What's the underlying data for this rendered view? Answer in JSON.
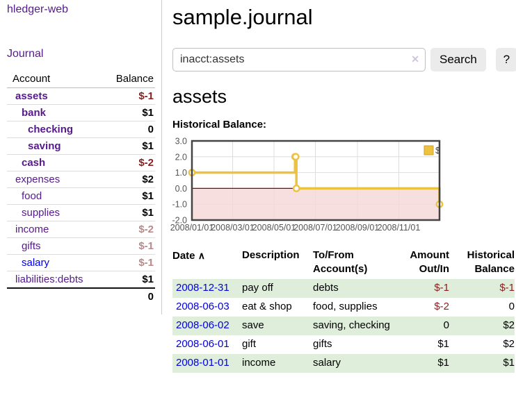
{
  "app": {
    "brand": "hledger-web",
    "nav_journal": "Journal"
  },
  "colors": {
    "link_purple": "#551a8b",
    "link_blue": "#0000e0",
    "negative_strong": "#8b1d1d",
    "negative_muted": "#b98989",
    "row_green": "#deeeda",
    "chart_line": "#edc240",
    "chart_negative_fill": "#f6d7d7",
    "chart_zero_line": "#8b0000",
    "button_gray": "#ebebeb"
  },
  "icons": {
    "search_clear": "✕",
    "sort_ascending": "∧"
  },
  "sidebar": {
    "headers": {
      "account": "Account",
      "balance": "Balance"
    },
    "rows": [
      {
        "account": "assets",
        "balance": "$-1",
        "indent": 0,
        "strong": true,
        "neg": "strong"
      },
      {
        "account": "bank",
        "balance": "$1",
        "indent": 1,
        "strong": true,
        "neg": ""
      },
      {
        "account": "checking",
        "balance": "0",
        "indent": 2,
        "strong": true,
        "neg": ""
      },
      {
        "account": "saving",
        "balance": "$1",
        "indent": 2,
        "strong": true,
        "neg": ""
      },
      {
        "account": "cash",
        "balance": "$-2",
        "indent": 1,
        "strong": true,
        "neg": "strong"
      },
      {
        "account": "expenses",
        "balance": "$2",
        "indent": 0,
        "strong": false,
        "neg": ""
      },
      {
        "account": "food",
        "balance": "$1",
        "indent": 1,
        "strong": false,
        "neg": ""
      },
      {
        "account": "supplies",
        "balance": "$1",
        "indent": 1,
        "strong": false,
        "neg": ""
      },
      {
        "account": "income",
        "balance": "$-2",
        "indent": 0,
        "strong": false,
        "neg": "muted"
      },
      {
        "account": "gifts",
        "balance": "$-1",
        "indent": 1,
        "strong": false,
        "neg": "muted"
      },
      {
        "account": "salary",
        "balance": "$-1",
        "indent": 1,
        "strong": false,
        "neg": "muted",
        "unvisited": true
      },
      {
        "account": "liabilities:debts",
        "balance": "$1",
        "indent": 0,
        "strong": false,
        "neg": ""
      }
    ],
    "total": "0"
  },
  "main": {
    "title": "sample.journal",
    "search": {
      "value": "inacct:assets",
      "clear_icon": "✕",
      "button_label": "Search",
      "help_label": "?"
    },
    "account_heading": "assets"
  },
  "chart_data": {
    "type": "line",
    "title": "Historical Balance:",
    "step": true,
    "series": [
      {
        "name": "$",
        "color": "#edc240",
        "points": [
          [
            "2008-01-01",
            1
          ],
          [
            "2008-06-01",
            2
          ],
          [
            "2008-06-02",
            2
          ],
          [
            "2008-06-03",
            0
          ],
          [
            "2008-12-31",
            -1
          ]
        ]
      }
    ],
    "x_range": [
      "2008-01-01",
      "2008-12-31"
    ],
    "x_ticks": [
      "2008/01/01",
      "2008/03/01",
      "2008/05/01",
      "2008/07/01",
      "2008/09/01",
      "2008/11/01"
    ],
    "x_tick_dates": [
      "2008-01-01",
      "2008-03-01",
      "2008-05-01",
      "2008-07-01",
      "2008-09-01",
      "2008-11-01"
    ],
    "y_ticks": [
      3.0,
      2.0,
      1.0,
      0.0,
      -1.0,
      -2.0
    ],
    "y_tick_labels": [
      "3.0",
      "2.0",
      "1.0",
      "0.0",
      "-1.0",
      "-2.0"
    ],
    "ylim": [
      -2,
      3
    ],
    "grid": true,
    "legend_position": "top-right",
    "negative_region_fill": "#f6d7d7",
    "zero_line_color": "#8b0000"
  },
  "transactions": {
    "sort_icon": "∧",
    "headers": [
      "Date",
      "Description",
      "To/From Account(s)",
      "Amount Out/In",
      "Historical Balance"
    ],
    "rows": [
      {
        "date": "2008-12-31",
        "description": "pay off",
        "accounts": "debts",
        "amount": "$-1",
        "amount_neg": true,
        "balance": "$-1",
        "balance_neg": true
      },
      {
        "date": "2008-06-03",
        "description": "eat & shop",
        "accounts": "food, supplies",
        "amount": "$-2",
        "amount_neg": true,
        "balance": "0",
        "balance_neg": false
      },
      {
        "date": "2008-06-02",
        "description": "save",
        "accounts": "saving, checking",
        "amount": "0",
        "amount_neg": false,
        "balance": "$2",
        "balance_neg": false
      },
      {
        "date": "2008-06-01",
        "description": "gift",
        "accounts": "gifts",
        "amount": "$1",
        "amount_neg": false,
        "balance": "$2",
        "balance_neg": false
      },
      {
        "date": "2008-01-01",
        "description": "income",
        "accounts": "salary",
        "amount": "$1",
        "amount_neg": false,
        "balance": "$1",
        "balance_neg": false
      }
    ]
  }
}
